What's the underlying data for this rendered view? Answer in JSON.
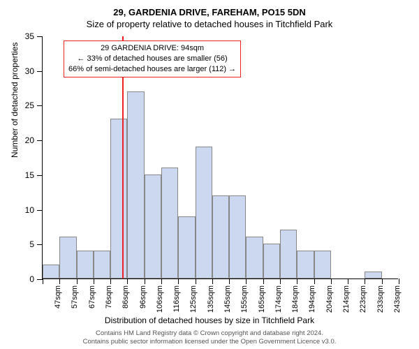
{
  "titles": {
    "main": "29, GARDENIA DRIVE, FAREHAM, PO15 5DN",
    "sub": "Size of property relative to detached houses in Titchfield Park"
  },
  "chart": {
    "type": "histogram",
    "x_axis_title": "Distribution of detached houses by size in Titchfield Park",
    "y_axis_title": "Number of detached properties",
    "ylim": [
      0,
      35
    ],
    "ytick_step": 5,
    "yticks": [
      0,
      5,
      10,
      15,
      20,
      25,
      30,
      35
    ],
    "x_categories": [
      "47sqm",
      "57sqm",
      "67sqm",
      "76sqm",
      "86sqm",
      "96sqm",
      "106sqm",
      "116sqm",
      "125sqm",
      "135sqm",
      "145sqm",
      "155sqm",
      "165sqm",
      "174sqm",
      "184sqm",
      "194sqm",
      "204sqm",
      "214sqm",
      "223sqm",
      "233sqm",
      "243sqm"
    ],
    "values": [
      2,
      6,
      4,
      4,
      23,
      27,
      15,
      16,
      9,
      19,
      12,
      12,
      6,
      5,
      7,
      4,
      4,
      0,
      0,
      1,
      0
    ],
    "bar_fill_color": "#ccd8f0",
    "bar_border_color": "#888888",
    "bar_width_ratio": 1.0,
    "background_color": "#ffffff",
    "marker_line": {
      "color": "#ee2222",
      "category_position": 4.7
    }
  },
  "annotation": {
    "line1": "29 GARDENIA DRIVE: 94sqm",
    "line2": "← 33% of detached houses are smaller (56)",
    "line3": "66% of semi-detached houses are larger (112) →",
    "border_color": "#ee2222",
    "text_color": "#000000",
    "background_color": "#ffffff"
  },
  "footer": {
    "line1": "Contains HM Land Registry data © Crown copyright and database right 2024.",
    "line2": "Contains public sector information licensed under the Open Government Licence v3.0."
  }
}
